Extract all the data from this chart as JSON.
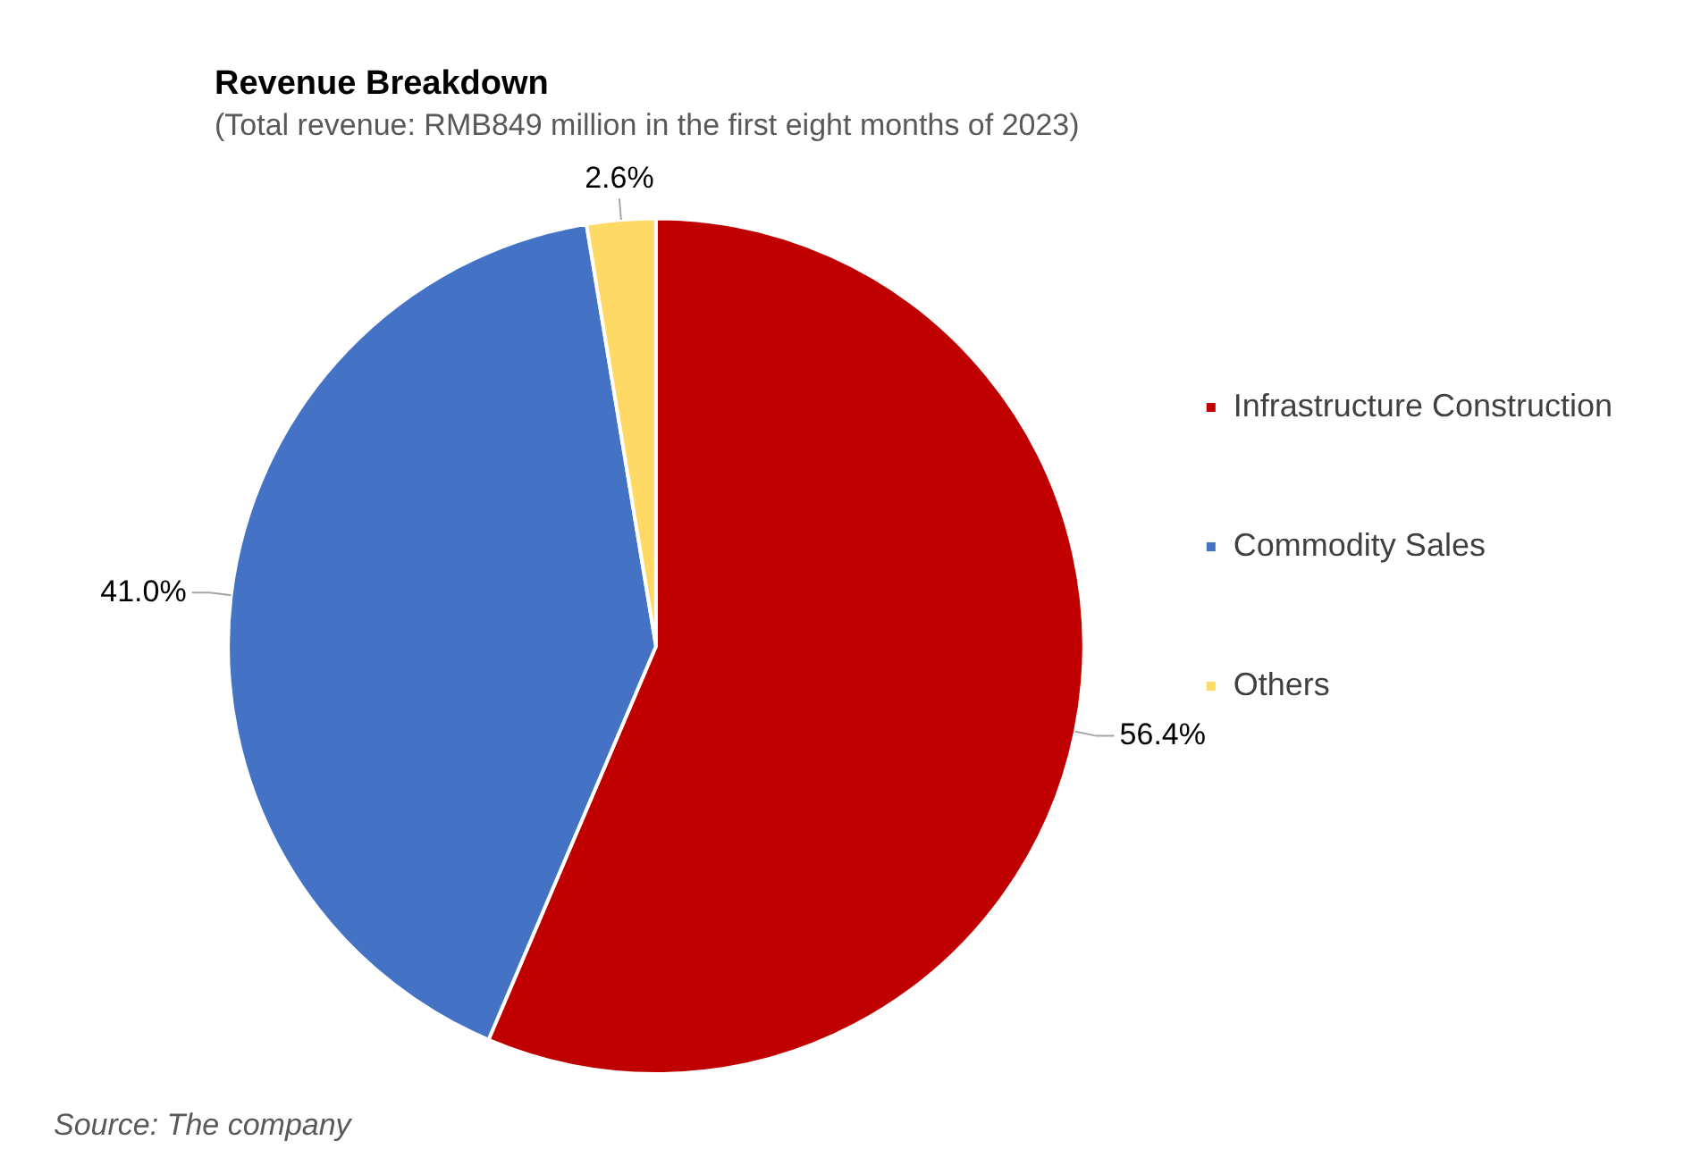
{
  "chart_data": {
    "type": "pie",
    "title": "Revenue Breakdown",
    "subtitle": "(Total revenue: RMB849 million in the first eight months of 2023)",
    "categories": [
      "Infrastructure Construction",
      "Commodity Sales",
      "Others"
    ],
    "values": [
      56.4,
      41.0,
      2.6
    ],
    "colors": [
      "#c00000",
      "#4472c4",
      "#ffd966"
    ],
    "value_labels": [
      "56.4%",
      "41.0%",
      "2.6%"
    ],
    "legend": "right",
    "annotations": [
      "Source: The company"
    ]
  }
}
